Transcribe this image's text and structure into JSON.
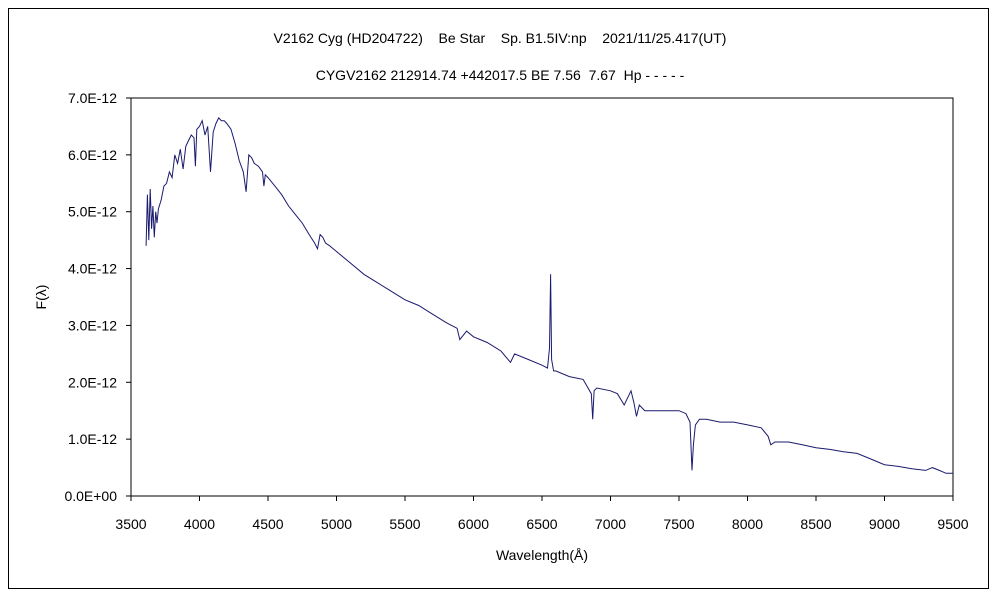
{
  "chart_data": {
    "type": "line",
    "title_line1": "V2162 Cyg (HD204722)    Be Star    Sp. B1.5IV:np    2021/11/25.417(UT)",
    "title_line2": "CYGV2162 212914.74 +442017.5 BE 7.56  7.67  Hp - - - - -",
    "xlabel": "Wavelength(Å)",
    "ylabel": "F(λ)",
    "xlim": [
      3500,
      9500
    ],
    "ylim": [
      0,
      7e-12
    ],
    "x_ticks": [
      3500,
      4000,
      4500,
      5000,
      5500,
      6000,
      6500,
      7000,
      7500,
      8000,
      8500,
      9000,
      9500
    ],
    "x_tick_labels": [
      "3500",
      "4000",
      "4500",
      "5000",
      "5500",
      "6000",
      "6500",
      "7000",
      "7500",
      "8000",
      "8500",
      "9000",
      "9500"
    ],
    "y_ticks": [
      0,
      1e-12,
      2e-12,
      3e-12,
      4e-12,
      5e-12,
      6e-12,
      7e-12
    ],
    "y_tick_labels": [
      "0.0E+00",
      "1.0E-12",
      "2.0E-12",
      "3.0E-12",
      "4.0E-12",
      "5.0E-12",
      "6.0E-12",
      "7.0E-12"
    ],
    "grid": false,
    "line_color": "#1a1a6e",
    "series": [
      {
        "name": "F(λ)",
        "x": [
          3610,
          3620,
          3630,
          3640,
          3650,
          3660,
          3670,
          3680,
          3690,
          3700,
          3720,
          3740,
          3760,
          3780,
          3800,
          3820,
          3840,
          3860,
          3880,
          3900,
          3920,
          3940,
          3960,
          3970,
          3980,
          4000,
          4020,
          4040,
          4060,
          4080,
          4100,
          4120,
          4140,
          4160,
          4180,
          4200,
          4230,
          4260,
          4290,
          4320,
          4340,
          4360,
          4380,
          4400,
          4430,
          4460,
          4470,
          4480,
          4500,
          4550,
          4600,
          4650,
          4700,
          4750,
          4800,
          4840,
          4861,
          4880,
          4900,
          4920,
          4950,
          5000,
          5100,
          5200,
          5300,
          5400,
          5500,
          5600,
          5700,
          5800,
          5880,
          5900,
          5950,
          6000,
          6100,
          6200,
          6270,
          6280,
          6300,
          6400,
          6500,
          6540,
          6555,
          6563,
          6570,
          6585,
          6600,
          6700,
          6800,
          6860,
          6870,
          6880,
          6900,
          7000,
          7050,
          7100,
          7150,
          7170,
          7190,
          7210,
          7250,
          7300,
          7400,
          7500,
          7550,
          7580,
          7595,
          7605,
          7620,
          7650,
          7700,
          7800,
          7900,
          8000,
          8100,
          8150,
          8170,
          8200,
          8300,
          8400,
          8500,
          8600,
          8700,
          8800,
          8900,
          9000,
          9100,
          9200,
          9300,
          9350,
          9400,
          9450,
          9500
        ],
        "values": [
          4.4e-12,
          5.3e-12,
          4.5e-12,
          5.4e-12,
          4.7e-12,
          5.1e-12,
          4.55e-12,
          5e-12,
          4.8e-12,
          5.05e-12,
          5.2e-12,
          5.45e-12,
          5.5e-12,
          5.7e-12,
          5.6e-12,
          6e-12,
          5.85e-12,
          6.1e-12,
          5.75e-12,
          6.15e-12,
          6.25e-12,
          6.35e-12,
          6.3e-12,
          5.8e-12,
          6.45e-12,
          6.5e-12,
          6.6e-12,
          6.35e-12,
          6.5e-12,
          5.7e-12,
          6.4e-12,
          6.55e-12,
          6.65e-12,
          6.6e-12,
          6.6e-12,
          6.55e-12,
          6.45e-12,
          6.2e-12,
          5.9e-12,
          5.7e-12,
          5.35e-12,
          6e-12,
          5.95e-12,
          5.85e-12,
          5.8e-12,
          5.7e-12,
          5.45e-12,
          5.65e-12,
          5.6e-12,
          5.45e-12,
          5.3e-12,
          5.1e-12,
          4.95e-12,
          4.8e-12,
          4.6e-12,
          4.45e-12,
          4.35e-12,
          4.6e-12,
          4.55e-12,
          4.45e-12,
          4.4e-12,
          4.3e-12,
          4.1e-12,
          3.9e-12,
          3.75e-12,
          3.6e-12,
          3.45e-12,
          3.35e-12,
          3.2e-12,
          3.05e-12,
          2.95e-12,
          2.75e-12,
          2.9e-12,
          2.8e-12,
          2.7e-12,
          2.55e-12,
          2.35e-12,
          2.4e-12,
          2.5e-12,
          2.4e-12,
          2.3e-12,
          2.25e-12,
          2.6e-12,
          3.9e-12,
          2.4e-12,
          2.2e-12,
          2.2e-12,
          2.1e-12,
          2.05e-12,
          1.8e-12,
          1.35e-12,
          1.85e-12,
          1.9e-12,
          1.85e-12,
          1.8e-12,
          1.6e-12,
          1.85e-12,
          1.65e-12,
          1.4e-12,
          1.6e-12,
          1.5e-12,
          1.5e-12,
          1.5e-12,
          1.5e-12,
          1.45e-12,
          1.3e-12,
          4.5e-13,
          9e-13,
          1.25e-12,
          1.35e-12,
          1.35e-12,
          1.3e-12,
          1.3e-12,
          1.25e-12,
          1.2e-12,
          1.05e-12,
          9e-13,
          9.5e-13,
          9.5e-13,
          9e-13,
          8.5e-13,
          8.2e-13,
          7.8e-13,
          7.5e-13,
          6.5e-13,
          5.5e-13,
          5.2e-13,
          4.8e-13,
          4.5e-13,
          5e-13,
          4.5e-13,
          4e-13,
          4e-13
        ]
      }
    ]
  }
}
